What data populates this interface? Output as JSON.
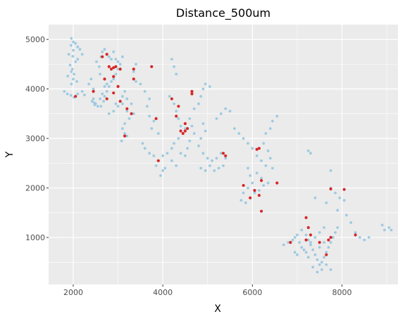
{
  "chart_data": {
    "type": "scatter",
    "title": "Distance_500um",
    "xlabel": "X",
    "ylabel": "Y",
    "xlim": [
      1450,
      9250
    ],
    "ylim": [
      50,
      5300
    ],
    "x_ticks": [
      2000,
      4000,
      6000,
      8000
    ],
    "y_ticks": [
      1000,
      2000,
      3000,
      4000,
      5000
    ],
    "grid": true,
    "panel_background": "#ebebeb",
    "grid_color": "#ffffff",
    "legend": "none",
    "series": [
      {
        "color": "#9ecae1",
        "points": [
          [
            1960,
            5020
          ],
          [
            2000,
            4950
          ],
          [
            2050,
            4920
          ],
          [
            1950,
            4880
          ],
          [
            2100,
            4850
          ],
          [
            2150,
            4800
          ],
          [
            2000,
            4780
          ],
          [
            1900,
            4700
          ],
          [
            1990,
            4660
          ],
          [
            2100,
            4600
          ],
          [
            2200,
            4700
          ],
          [
            2050,
            4550
          ],
          [
            1930,
            4480
          ],
          [
            1980,
            4400
          ],
          [
            1960,
            4350
          ],
          [
            2020,
            4300
          ],
          [
            1880,
            4260
          ],
          [
            2000,
            4200
          ],
          [
            2080,
            4150
          ],
          [
            1960,
            4100
          ],
          [
            1800,
            3950
          ],
          [
            1870,
            3900
          ],
          [
            1950,
            3870
          ],
          [
            2020,
            3830
          ],
          [
            2100,
            3900
          ],
          [
            2200,
            3950
          ],
          [
            2250,
            3880
          ],
          [
            2350,
            4100
          ],
          [
            2400,
            4200
          ],
          [
            2450,
            4000
          ],
          [
            2450,
            3800
          ],
          [
            2420,
            3750
          ],
          [
            2470,
            3720
          ],
          [
            2500,
            3700
          ],
          [
            2550,
            3650
          ],
          [
            2480,
            3680
          ],
          [
            2600,
            3800
          ],
          [
            2650,
            3900
          ],
          [
            2700,
            4050
          ],
          [
            2750,
            4100
          ],
          [
            2600,
            4300
          ],
          [
            2580,
            4450
          ],
          [
            2520,
            4550
          ],
          [
            2620,
            4650
          ],
          [
            2650,
            4750
          ],
          [
            2700,
            4800
          ],
          [
            2750,
            4700
          ],
          [
            2800,
            4650
          ],
          [
            2850,
            4600
          ],
          [
            2900,
            4750
          ],
          [
            2950,
            4600
          ],
          [
            3000,
            4550
          ],
          [
            3050,
            4500
          ],
          [
            3100,
            4650
          ],
          [
            3000,
            4400
          ],
          [
            2950,
            4300
          ],
          [
            2900,
            4200
          ],
          [
            2850,
            4150
          ],
          [
            2800,
            4050
          ],
          [
            2750,
            3950
          ],
          [
            2700,
            3850
          ],
          [
            2680,
            3750
          ],
          [
            2620,
            3650
          ],
          [
            2800,
            3500
          ],
          [
            2900,
            3550
          ],
          [
            2950,
            3700
          ],
          [
            3000,
            3650
          ],
          [
            3100,
            3850
          ],
          [
            3150,
            3950
          ],
          [
            3200,
            3800
          ],
          [
            3100,
            3700
          ],
          [
            3200,
            3550
          ],
          [
            3300,
            3700
          ],
          [
            3350,
            3500
          ],
          [
            3250,
            3400
          ],
          [
            3150,
            3300
          ],
          [
            3100,
            3200
          ],
          [
            3150,
            3100
          ],
          [
            3200,
            3050
          ],
          [
            3080,
            2950
          ],
          [
            3400,
            4500
          ],
          [
            3350,
            4350
          ],
          [
            3400,
            4150
          ],
          [
            3500,
            4100
          ],
          [
            3600,
            3950
          ],
          [
            3700,
            3800
          ],
          [
            3650,
            3650
          ],
          [
            3700,
            3450
          ],
          [
            3800,
            3350
          ],
          [
            3750,
            3200
          ],
          [
            3900,
            3100
          ],
          [
            3550,
            2900
          ],
          [
            3600,
            2800
          ],
          [
            3700,
            2700
          ],
          [
            3800,
            2650
          ],
          [
            3900,
            2550
          ],
          [
            3850,
            2450
          ],
          [
            4000,
            2350
          ],
          [
            4050,
            2400
          ],
          [
            3950,
            2250
          ],
          [
            4200,
            4600
          ],
          [
            4250,
            4450
          ],
          [
            4300,
            4300
          ],
          [
            4150,
            3850
          ],
          [
            4250,
            3700
          ],
          [
            4300,
            3550
          ],
          [
            4350,
            3400
          ],
          [
            4400,
            3250
          ],
          [
            4500,
            3200
          ],
          [
            4450,
            3100
          ],
          [
            4350,
            3000
          ],
          [
            4250,
            2900
          ],
          [
            4200,
            2800
          ],
          [
            4100,
            2700
          ],
          [
            4000,
            2650
          ],
          [
            4200,
            2550
          ],
          [
            4300,
            2450
          ],
          [
            4400,
            2700
          ],
          [
            4500,
            2650
          ],
          [
            4550,
            2800
          ],
          [
            4600,
            2950
          ],
          [
            4700,
            3100
          ],
          [
            4650,
            3250
          ],
          [
            4600,
            3400
          ],
          [
            4700,
            3600
          ],
          [
            4800,
            3700
          ],
          [
            4850,
            3850
          ],
          [
            4900,
            4000
          ],
          [
            4950,
            4100
          ],
          [
            5050,
            4050
          ],
          [
            4900,
            3300
          ],
          [
            4950,
            3150
          ],
          [
            4850,
            3000
          ],
          [
            4800,
            2850
          ],
          [
            4900,
            2700
          ],
          [
            5000,
            2600
          ],
          [
            5100,
            2550
          ],
          [
            5200,
            2600
          ],
          [
            5300,
            2700
          ],
          [
            5400,
            2600
          ],
          [
            5350,
            2450
          ],
          [
            5250,
            2400
          ],
          [
            5150,
            2350
          ],
          [
            5050,
            2450
          ],
          [
            4950,
            2350
          ],
          [
            4850,
            2400
          ],
          [
            5200,
            3400
          ],
          [
            5300,
            3500
          ],
          [
            5400,
            3600
          ],
          [
            5500,
            3550
          ],
          [
            5600,
            3200
          ],
          [
            5700,
            3100
          ],
          [
            5800,
            3000
          ],
          [
            5900,
            2900
          ],
          [
            6000,
            2800
          ],
          [
            6100,
            2650
          ],
          [
            6200,
            2550
          ],
          [
            6300,
            2450
          ],
          [
            6100,
            2300
          ],
          [
            6200,
            2200
          ],
          [
            6000,
            2100
          ],
          [
            5900,
            2000
          ],
          [
            5800,
            1900
          ],
          [
            5750,
            1750
          ],
          [
            5850,
            1700
          ],
          [
            5950,
            1800
          ],
          [
            6050,
            1900
          ],
          [
            6150,
            1950
          ],
          [
            6250,
            2050
          ],
          [
            6350,
            2100
          ],
          [
            6300,
            3100
          ],
          [
            6400,
            3200
          ],
          [
            6450,
            3350
          ],
          [
            6550,
            3450
          ],
          [
            6250,
            2900
          ],
          [
            6350,
            2750
          ],
          [
            6400,
            2600
          ],
          [
            6450,
            2400
          ],
          [
            5900,
            2400
          ],
          [
            5950,
            2250
          ],
          [
            6700,
            850
          ],
          [
            6800,
            900
          ],
          [
            6900,
            950
          ],
          [
            7000,
            1050
          ],
          [
            7100,
            1150
          ],
          [
            7200,
            1050
          ],
          [
            7250,
            950
          ],
          [
            7300,
            850
          ],
          [
            7350,
            750
          ],
          [
            7400,
            650
          ],
          [
            7450,
            550
          ],
          [
            7500,
            450
          ],
          [
            7550,
            500
          ],
          [
            7600,
            600
          ],
          [
            7650,
            700
          ],
          [
            7700,
            800
          ],
          [
            7750,
            900
          ],
          [
            7800,
            1000
          ],
          [
            7850,
            1100
          ],
          [
            7900,
            1200
          ],
          [
            7100,
            800
          ],
          [
            7200,
            700
          ],
          [
            7300,
            900
          ],
          [
            7400,
            1000
          ],
          [
            7500,
            1100
          ],
          [
            7600,
            1200
          ],
          [
            7000,
            650
          ],
          [
            6950,
            700
          ],
          [
            7250,
            600
          ],
          [
            7350,
            400
          ],
          [
            7650,
            450
          ],
          [
            7750,
            350
          ],
          [
            7550,
            350
          ],
          [
            7450,
            300
          ],
          [
            7250,
            2750
          ],
          [
            7300,
            2700
          ],
          [
            7750,
            2000
          ],
          [
            7850,
            1900
          ],
          [
            7950,
            1800
          ],
          [
            8050,
            1750
          ],
          [
            7900,
            1550
          ],
          [
            8100,
            1450
          ],
          [
            8200,
            1300
          ],
          [
            8300,
            1100
          ],
          [
            8400,
            1000
          ],
          [
            8500,
            950
          ],
          [
            8600,
            1000
          ],
          [
            8900,
            1250
          ],
          [
            8950,
            1150
          ],
          [
            9050,
            1200
          ],
          [
            9100,
            1150
          ],
          [
            7400,
            1800
          ],
          [
            7650,
            1700
          ],
          [
            7750,
            2350
          ],
          [
            6850,
            900
          ],
          [
            6950,
            1000
          ],
          [
            7050,
            900
          ],
          [
            7150,
            750
          ],
          [
            7500,
            800
          ],
          [
            7600,
            900
          ]
        ]
      },
      {
        "color": "#d62728",
        "points": [
          [
            2050,
            3850
          ],
          [
            2450,
            3950
          ],
          [
            2700,
            4200
          ],
          [
            2650,
            4650
          ],
          [
            2750,
            4700
          ],
          [
            2800,
            4450
          ],
          [
            2850,
            4400
          ],
          [
            2900,
            4430
          ],
          [
            2950,
            4450
          ],
          [
            3050,
            4400
          ],
          [
            2900,
            4250
          ],
          [
            3000,
            4050
          ],
          [
            2900,
            3920
          ],
          [
            2750,
            3800
          ],
          [
            3050,
            3750
          ],
          [
            3200,
            3600
          ],
          [
            3300,
            3500
          ],
          [
            3350,
            4400
          ],
          [
            3350,
            4200
          ],
          [
            3750,
            4450
          ],
          [
            3850,
            3400
          ],
          [
            3900,
            2550
          ],
          [
            3150,
            3050
          ],
          [
            4200,
            3800
          ],
          [
            4300,
            3450
          ],
          [
            4350,
            3650
          ],
          [
            4450,
            3100
          ],
          [
            4400,
            3150
          ],
          [
            4500,
            3300
          ],
          [
            4550,
            3200
          ],
          [
            4500,
            3150
          ],
          [
            4650,
            3900
          ],
          [
            4650,
            3950
          ],
          [
            5350,
            2700
          ],
          [
            5400,
            2650
          ],
          [
            5800,
            2050
          ],
          [
            5950,
            1800
          ],
          [
            6050,
            1950
          ],
          [
            6150,
            1850
          ],
          [
            6100,
            2780
          ],
          [
            6150,
            2800
          ],
          [
            6200,
            2150
          ],
          [
            6200,
            1530
          ],
          [
            6550,
            2100
          ],
          [
            6850,
            900
          ],
          [
            7200,
            1400
          ],
          [
            7250,
            1200
          ],
          [
            7300,
            1050
          ],
          [
            7200,
            950
          ],
          [
            7500,
            900
          ],
          [
            7650,
            650
          ],
          [
            7700,
            950
          ],
          [
            7750,
            1000
          ],
          [
            7750,
            1980
          ],
          [
            8050,
            1970
          ],
          [
            8300,
            1050
          ]
        ]
      }
    ]
  }
}
